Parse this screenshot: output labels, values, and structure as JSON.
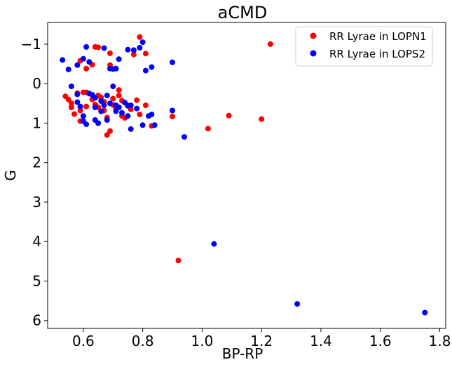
{
  "chart_data": {
    "type": "scatter",
    "title": "aCMD",
    "xlabel": "BP-RP",
    "ylabel": "G",
    "xlim": [
      0.48,
      1.82
    ],
    "ylim": [
      6.2,
      -1.55
    ],
    "y_inverted": true,
    "grid": false,
    "legend_position": "top-right",
    "x_ticks": [
      {
        "value": 0.6,
        "label": "0.6"
      },
      {
        "value": 0.8,
        "label": "0.8"
      },
      {
        "value": 1.0,
        "label": "1.0"
      },
      {
        "value": 1.2,
        "label": "1.2"
      },
      {
        "value": 1.4,
        "label": "1.4"
      },
      {
        "value": 1.6,
        "label": "1.6"
      },
      {
        "value": 1.8,
        "label": "1.8"
      }
    ],
    "y_ticks": [
      {
        "value": -1,
        "label": "−1"
      },
      {
        "value": 0,
        "label": "0"
      },
      {
        "value": 1,
        "label": "1"
      },
      {
        "value": 2,
        "label": "2"
      },
      {
        "value": 3,
        "label": "3"
      },
      {
        "value": 4,
        "label": "4"
      },
      {
        "value": 5,
        "label": "5"
      },
      {
        "value": 6,
        "label": "6"
      }
    ],
    "series": [
      {
        "name": "RR Lyrae in LOPN1",
        "color": "#ff0000",
        "points": [
          [
            0.79,
            -1.18
          ],
          [
            0.77,
            -0.74
          ],
          [
            0.81,
            -0.76
          ],
          [
            0.69,
            -0.77
          ],
          [
            0.59,
            -0.58
          ],
          [
            0.61,
            -0.38
          ],
          [
            0.63,
            -0.48
          ],
          [
            0.69,
            -0.47
          ],
          [
            0.64,
            -0.93
          ],
          [
            0.65,
            -0.92
          ],
          [
            1.23,
            -1.0
          ],
          [
            0.54,
            0.32
          ],
          [
            0.55,
            0.4
          ],
          [
            0.56,
            0.5
          ],
          [
            0.56,
            0.6
          ],
          [
            0.57,
            0.77
          ],
          [
            0.58,
            0.24
          ],
          [
            0.59,
            0.68
          ],
          [
            0.59,
            0.95
          ],
          [
            0.6,
            0.22
          ],
          [
            0.61,
            0.22
          ],
          [
            0.61,
            0.58
          ],
          [
            0.62,
            0.25
          ],
          [
            0.63,
            0.4
          ],
          [
            0.64,
            0.53
          ],
          [
            0.65,
            0.3
          ],
          [
            0.65,
            0.6
          ],
          [
            0.66,
            0.7
          ],
          [
            0.66,
            0.35
          ],
          [
            0.67,
            0.46
          ],
          [
            0.67,
            0.68
          ],
          [
            0.68,
            0.86
          ],
          [
            0.68,
            1.3
          ],
          [
            0.69,
            1.2
          ],
          [
            0.7,
            0.38
          ],
          [
            0.7,
            0.54
          ],
          [
            0.71,
            0.63
          ],
          [
            0.72,
            0.3
          ],
          [
            0.72,
            0.16
          ],
          [
            0.73,
            0.43
          ],
          [
            0.73,
            0.82
          ],
          [
            0.74,
            0.87
          ],
          [
            0.75,
            0.56
          ],
          [
            0.76,
            0.65
          ],
          [
            0.78,
            0.42
          ],
          [
            0.79,
            0.78
          ],
          [
            0.81,
            0.55
          ],
          [
            0.83,
            1.07
          ],
          [
            0.9,
            0.83
          ],
          [
            1.02,
            1.14
          ],
          [
            1.09,
            0.81
          ],
          [
            1.2,
            0.9
          ],
          [
            0.92,
            4.48
          ]
        ]
      },
      {
        "name": "RR Lyrae in LOPS2",
        "color": "#0000ff",
        "points": [
          [
            0.53,
            -0.6
          ],
          [
            0.55,
            -0.36
          ],
          [
            0.56,
            0.07
          ],
          [
            0.58,
            -0.47
          ],
          [
            0.6,
            -0.63
          ],
          [
            0.61,
            -0.93
          ],
          [
            0.62,
            -0.55
          ],
          [
            0.67,
            -0.9
          ],
          [
            0.69,
            -0.38
          ],
          [
            0.7,
            -0.37
          ],
          [
            0.71,
            -0.38
          ],
          [
            0.72,
            -0.62
          ],
          [
            0.75,
            -0.86
          ],
          [
            0.77,
            -0.85
          ],
          [
            0.79,
            -0.91
          ],
          [
            0.8,
            -1.05
          ],
          [
            0.81,
            -0.33
          ],
          [
            0.83,
            -0.42
          ],
          [
            0.9,
            -0.54
          ],
          [
            0.58,
            0.27
          ],
          [
            0.58,
            0.47
          ],
          [
            0.59,
            0.58
          ],
          [
            0.6,
            0.82
          ],
          [
            0.6,
            0.95
          ],
          [
            0.61,
            1.03
          ],
          [
            0.62,
            0.25
          ],
          [
            0.63,
            0.28
          ],
          [
            0.64,
            0.36
          ],
          [
            0.64,
            0.6
          ],
          [
            0.64,
            0.92
          ],
          [
            0.65,
            1.0
          ],
          [
            0.66,
            0.44
          ],
          [
            0.66,
            0.7
          ],
          [
            0.67,
            0.55
          ],
          [
            0.68,
            0.3
          ],
          [
            0.68,
            0.92
          ],
          [
            0.69,
            0.5
          ],
          [
            0.7,
            0.07
          ],
          [
            0.71,
            0.55
          ],
          [
            0.71,
            0.7
          ],
          [
            0.72,
            0.6
          ],
          [
            0.73,
            0.74
          ],
          [
            0.74,
            0.48
          ],
          [
            0.75,
            0.82
          ],
          [
            0.75,
            0.56
          ],
          [
            0.76,
            0.55
          ],
          [
            0.76,
            1.15
          ],
          [
            0.78,
            0.63
          ],
          [
            0.8,
            1.05
          ],
          [
            0.82,
            0.82
          ],
          [
            0.83,
            0.78
          ],
          [
            0.84,
            1.05
          ],
          [
            0.9,
            0.68
          ],
          [
            0.94,
            1.35
          ],
          [
            1.04,
            4.06
          ],
          [
            1.32,
            5.58
          ],
          [
            1.75,
            5.8
          ]
        ]
      }
    ]
  }
}
